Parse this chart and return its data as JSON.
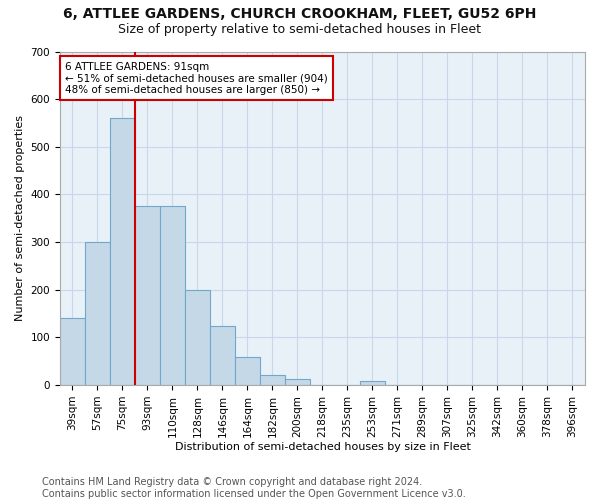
{
  "title": "6, ATTLEE GARDENS, CHURCH CROOKHAM, FLEET, GU52 6PH",
  "subtitle": "Size of property relative to semi-detached houses in Fleet",
  "xlabel": "Distribution of semi-detached houses by size in Fleet",
  "ylabel": "Number of semi-detached properties",
  "bar_categories": [
    "39sqm",
    "57sqm",
    "75sqm",
    "93sqm",
    "110sqm",
    "128sqm",
    "146sqm",
    "164sqm",
    "182sqm",
    "200sqm",
    "218sqm",
    "235sqm",
    "253sqm",
    "271sqm",
    "289sqm",
    "307sqm",
    "325sqm",
    "342sqm",
    "360sqm",
    "378sqm",
    "396sqm"
  ],
  "bar_values": [
    140,
    300,
    560,
    375,
    375,
    200,
    125,
    60,
    22,
    12,
    0,
    0,
    8,
    0,
    0,
    0,
    0,
    0,
    0,
    0,
    0
  ],
  "bar_color": "#c5d8e8",
  "bar_edge_color": "#6fa8c9",
  "ylim": [
    0,
    700
  ],
  "yticks": [
    0,
    100,
    200,
    300,
    400,
    500,
    600,
    700
  ],
  "property_line_x": 3,
  "property_label": "6 ATTLEE GARDENS: 91sqm",
  "smaller_pct": "51%",
  "smaller_count": 904,
  "larger_pct": "48%",
  "larger_count": 850,
  "annotation_box_color": "#ffffff",
  "annotation_box_edge": "#cc0000",
  "annotation_line_color": "#cc0000",
  "background_color": "#ffffff",
  "grid_color": "#c8d8e8",
  "ax_bg_color": "#e8f0f8",
  "footer_text": "Contains HM Land Registry data © Crown copyright and database right 2024.\nContains public sector information licensed under the Open Government Licence v3.0.",
  "title_fontsize": 10,
  "subtitle_fontsize": 9,
  "axis_label_fontsize": 8,
  "tick_fontsize": 7.5,
  "footer_fontsize": 7
}
